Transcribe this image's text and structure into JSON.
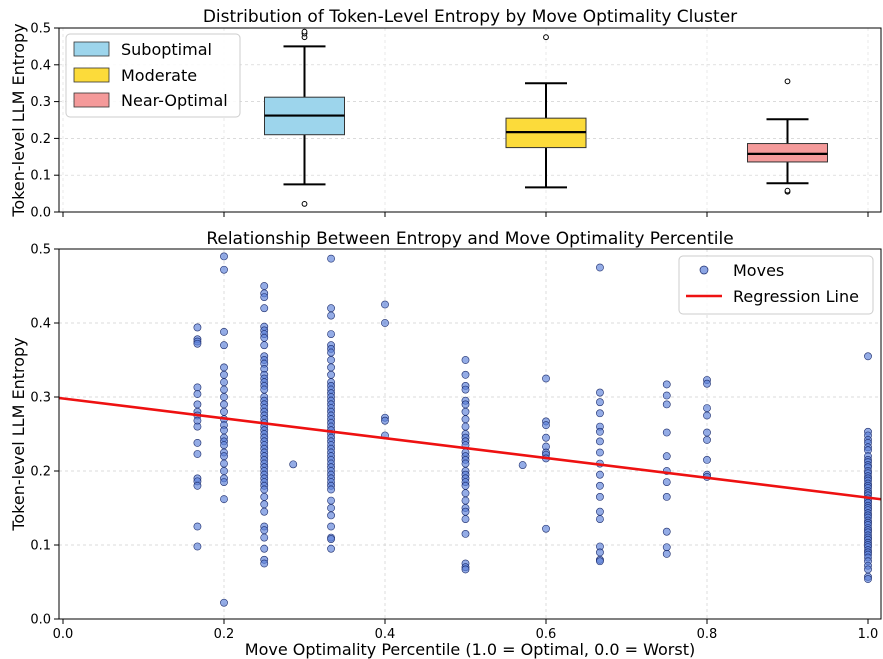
{
  "colors": {
    "suboptimal": "#9dd5ec",
    "moderate": "#fcdb3a",
    "near_optimal": "#f49a9a",
    "points": "#5b7fd8",
    "regression": "#ee1111"
  },
  "chart_data": [
    {
      "type": "box",
      "title": "Distribution of Token-Level Entropy by Move Optimality Cluster",
      "ylabel": "Token-level LLM Entropy",
      "ylim": [
        0.0,
        0.5
      ],
      "yticks": [
        "0.0",
        "0.1",
        "0.2",
        "0.3",
        "0.4",
        "0.5"
      ],
      "grid": true,
      "legend_position": "top-left",
      "series": [
        {
          "name": "Suboptimal",
          "color_key": "suboptimal",
          "x": 0.3,
          "min": 0.075,
          "q1": 0.21,
          "median": 0.262,
          "q3": 0.312,
          "max": 0.45,
          "outliers": [
            0.022,
            0.475,
            0.485,
            0.49
          ]
        },
        {
          "name": "Moderate",
          "color_key": "moderate",
          "x": 0.6,
          "min": 0.067,
          "q1": 0.175,
          "median": 0.217,
          "q3": 0.255,
          "max": 0.35,
          "outliers": [
            0.475
          ]
        },
        {
          "name": "Near-Optimal",
          "color_key": "near_optimal",
          "x": 0.9,
          "min": 0.078,
          "q1": 0.136,
          "median": 0.158,
          "q3": 0.186,
          "max": 0.252,
          "outliers": [
            0.055,
            0.058,
            0.355
          ]
        }
      ]
    },
    {
      "type": "scatter",
      "title": "Relationship Between Entropy and Move Optimality Percentile",
      "xlabel": "Move Optimality Percentile (1.0 = Optimal, 0.0 = Worst)",
      "ylabel": "Token-level LLM Entropy",
      "xlim": [
        0.0,
        1.0
      ],
      "ylim": [
        0.0,
        0.5
      ],
      "xticks": [
        "0.0",
        "0.2",
        "0.4",
        "0.6",
        "0.8",
        "1.0"
      ],
      "yticks": [
        "0.0",
        "0.1",
        "0.2",
        "0.3",
        "0.4",
        "0.5"
      ],
      "grid": true,
      "legend_position": "top-right",
      "legend": [
        "Moves",
        "Regression Line"
      ],
      "regression": {
        "x": [
          0.0,
          1.0
        ],
        "y": [
          0.298,
          0.164
        ]
      },
      "points": {
        "x_groups": [
          0.167,
          0.2,
          0.25,
          0.286,
          0.333,
          0.4,
          0.5,
          0.571,
          0.6,
          0.667,
          0.75,
          0.8,
          1.0
        ],
        "y_by_group": [
          [
            0.394,
            0.378,
            0.375,
            0.372,
            0.313,
            0.304,
            0.29,
            0.28,
            0.275,
            0.268,
            0.26,
            0.238,
            0.223,
            0.19,
            0.186,
            0.18,
            0.125,
            0.098
          ],
          [
            0.49,
            0.472,
            0.388,
            0.37,
            0.34,
            0.33,
            0.32,
            0.31,
            0.3,
            0.29,
            0.28,
            0.27,
            0.262,
            0.255,
            0.245,
            0.24,
            0.235,
            0.225,
            0.22,
            0.21,
            0.2,
            0.19,
            0.185,
            0.162,
            0.022
          ],
          [
            0.45,
            0.44,
            0.435,
            0.42,
            0.395,
            0.39,
            0.385,
            0.38,
            0.37,
            0.355,
            0.35,
            0.345,
            0.338,
            0.33,
            0.325,
            0.32,
            0.315,
            0.31,
            0.3,
            0.295,
            0.29,
            0.285,
            0.28,
            0.275,
            0.27,
            0.265,
            0.26,
            0.255,
            0.25,
            0.245,
            0.24,
            0.235,
            0.23,
            0.225,
            0.22,
            0.215,
            0.21,
            0.205,
            0.2,
            0.195,
            0.19,
            0.185,
            0.18,
            0.175,
            0.165,
            0.155,
            0.145,
            0.125,
            0.12,
            0.11,
            0.095,
            0.08,
            0.075
          ],
          [
            0.209
          ],
          [
            0.487,
            0.42,
            0.41,
            0.385,
            0.37,
            0.365,
            0.36,
            0.35,
            0.34,
            0.33,
            0.32,
            0.315,
            0.31,
            0.305,
            0.3,
            0.295,
            0.29,
            0.285,
            0.28,
            0.275,
            0.27,
            0.265,
            0.26,
            0.255,
            0.25,
            0.245,
            0.24,
            0.235,
            0.23,
            0.225,
            0.22,
            0.215,
            0.21,
            0.205,
            0.2,
            0.195,
            0.19,
            0.185,
            0.18,
            0.175,
            0.16,
            0.15,
            0.14,
            0.125,
            0.11,
            0.108,
            0.095
          ],
          [
            0.425,
            0.4,
            0.272,
            0.268,
            0.248
          ],
          [
            0.35,
            0.33,
            0.315,
            0.31,
            0.295,
            0.29,
            0.28,
            0.27,
            0.26,
            0.25,
            0.245,
            0.24,
            0.235,
            0.225,
            0.22,
            0.215,
            0.21,
            0.2,
            0.195,
            0.19,
            0.185,
            0.18,
            0.17,
            0.16,
            0.15,
            0.145,
            0.135,
            0.115,
            0.075,
            0.07,
            0.067
          ],
          [
            0.208
          ],
          [
            0.325,
            0.267,
            0.262,
            0.245,
            0.233,
            0.225,
            0.222,
            0.217,
            0.122
          ],
          [
            0.475,
            0.306,
            0.293,
            0.278,
            0.26,
            0.253,
            0.24,
            0.225,
            0.21,
            0.195,
            0.18,
            0.165,
            0.145,
            0.135,
            0.098,
            0.09,
            0.08,
            0.078
          ],
          [
            0.317,
            0.302,
            0.29,
            0.252,
            0.22,
            0.2,
            0.185,
            0.165,
            0.118,
            0.097,
            0.088
          ],
          [
            0.323,
            0.318,
            0.285,
            0.275,
            0.252,
            0.242,
            0.215,
            0.195,
            0.192
          ],
          [
            0.355,
            0.253,
            0.248,
            0.242,
            0.238,
            0.232,
            0.228,
            0.22,
            0.215,
            0.212,
            0.208,
            0.205,
            0.2,
            0.197,
            0.193,
            0.19,
            0.187,
            0.183,
            0.18,
            0.177,
            0.173,
            0.17,
            0.167,
            0.163,
            0.16,
            0.157,
            0.153,
            0.15,
            0.147,
            0.143,
            0.14,
            0.137,
            0.133,
            0.13,
            0.127,
            0.123,
            0.12,
            0.117,
            0.113,
            0.11,
            0.107,
            0.103,
            0.1,
            0.097,
            0.093,
            0.09,
            0.087,
            0.083,
            0.078,
            0.072,
            0.067,
            0.057,
            0.054
          ]
        ]
      }
    }
  ]
}
